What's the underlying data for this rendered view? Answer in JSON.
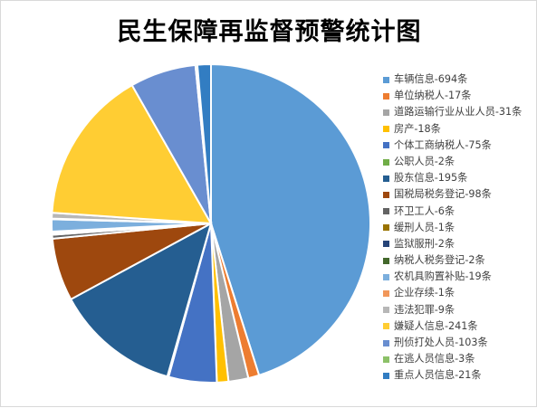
{
  "chart_data": {
    "type": "pie",
    "title": "民生保障再监督预警统计图",
    "legend_position": "right",
    "slices": [
      {
        "label": "车辆信息-694条",
        "value": 694,
        "color": "#5b9bd5"
      },
      {
        "label": "单位纳税人-17条",
        "value": 17,
        "color": "#ed7d31"
      },
      {
        "label": "道路运输行业从业人员-31条",
        "value": 31,
        "color": "#a5a5a5"
      },
      {
        "label": "房产-18条",
        "value": 18,
        "color": "#ffc000"
      },
      {
        "label": "个体工商纳税人-75条",
        "value": 75,
        "color": "#4472c4"
      },
      {
        "label": "公职人员-2条",
        "value": 2,
        "color": "#70ad47"
      },
      {
        "label": "股东信息-195条",
        "value": 195,
        "color": "#255e91"
      },
      {
        "label": "国税局税务登记-98条",
        "value": 98,
        "color": "#9e480e"
      },
      {
        "label": "环卫工人-6条",
        "value": 6,
        "color": "#636363"
      },
      {
        "label": "缓刑人员-1条",
        "value": 1,
        "color": "#997300"
      },
      {
        "label": "监狱服刑-2条",
        "value": 2,
        "color": "#264478"
      },
      {
        "label": "纳税人税务登记-2条",
        "value": 2,
        "color": "#43682b"
      },
      {
        "label": "农机具购置补贴-19条",
        "value": 19,
        "color": "#7cafdd"
      },
      {
        "label": "企业存续-1条",
        "value": 1,
        "color": "#f1975a"
      },
      {
        "label": "违法犯罪-9条",
        "value": 9,
        "color": "#b7b7b7"
      },
      {
        "label": "嫌疑人信息-241条",
        "value": 241,
        "color": "#ffcd33"
      },
      {
        "label": "刑侦打处人员-103条",
        "value": 103,
        "color": "#698ed0"
      },
      {
        "label": "在逃人员信息-3条",
        "value": 3,
        "color": "#8cc168"
      },
      {
        "label": "重点人员信息-21条",
        "value": 21,
        "color": "#327dc2"
      }
    ]
  }
}
